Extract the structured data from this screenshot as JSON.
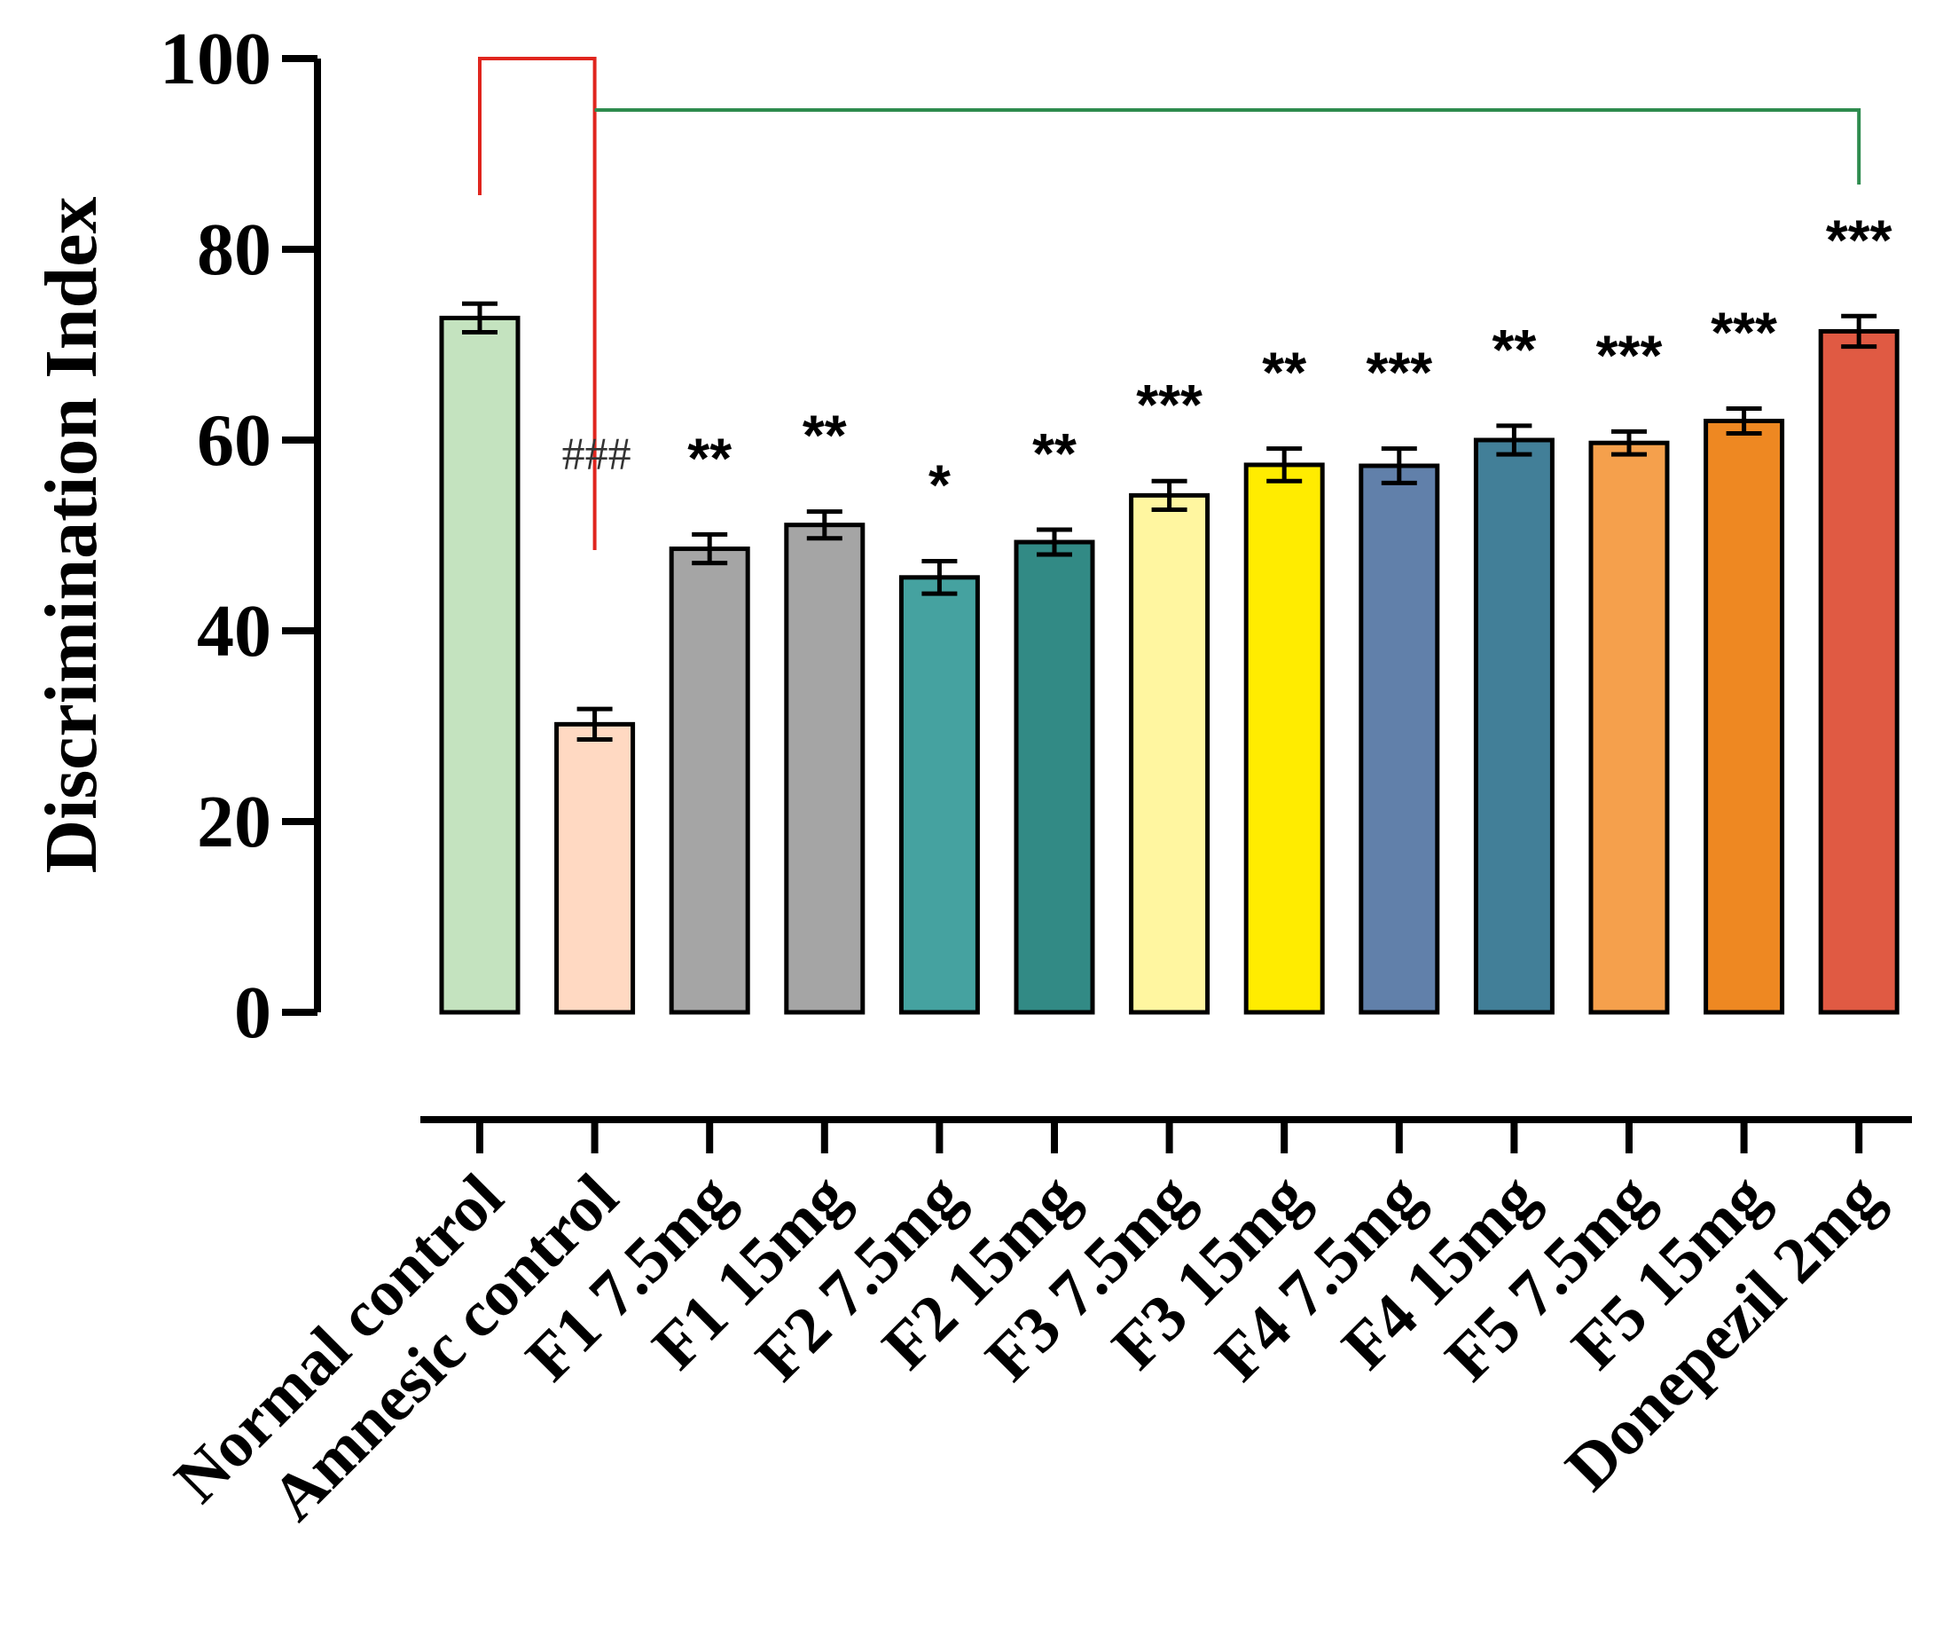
{
  "chart_data": {
    "type": "bar",
    "ylabel": "Discrimination Index",
    "xlabel": "",
    "ylim": [
      0,
      100
    ],
    "yticks": [
      0,
      20,
      40,
      60,
      80,
      100
    ],
    "grid": false,
    "categories": [
      "Normal control",
      "Amnesic control",
      "F1 7.5mg",
      "F1 15mg",
      "F2 7.5mg",
      "F2 15mg",
      "F3 7.5mg",
      "F3 15mg",
      "F4 7.5mg",
      "F4 15mg",
      "F5 7.5mg",
      "F5 15mg",
      "Donepezil 2mg"
    ],
    "values": [
      72.8,
      30.2,
      48.6,
      51.1,
      45.6,
      49.3,
      54.2,
      57.4,
      57.3,
      60.0,
      59.7,
      62.0,
      71.4
    ],
    "errors": [
      1.5,
      1.6,
      1.5,
      1.4,
      1.7,
      1.3,
      1.5,
      1.7,
      1.8,
      1.5,
      1.2,
      1.3,
      1.6
    ],
    "colors": [
      "#c4e3bf",
      "#ffd9c2",
      "#a5a5a5",
      "#a5a5a5",
      "#45a2a0",
      "#328a85",
      "#fff6a0",
      "#ffec00",
      "#6180aa",
      "#427f98",
      "#f5a04c",
      "#ee8822",
      "#e05a43"
    ],
    "significance": [
      "",
      "###",
      "**",
      "**",
      "*",
      "**",
      "***",
      "**",
      "***",
      "**",
      "***",
      "***",
      "***"
    ],
    "brackets": [
      {
        "from": 0,
        "to": 1,
        "color": "#e0251e"
      },
      {
        "from": 1,
        "to": 12,
        "color": "#2e8b4e"
      }
    ]
  }
}
